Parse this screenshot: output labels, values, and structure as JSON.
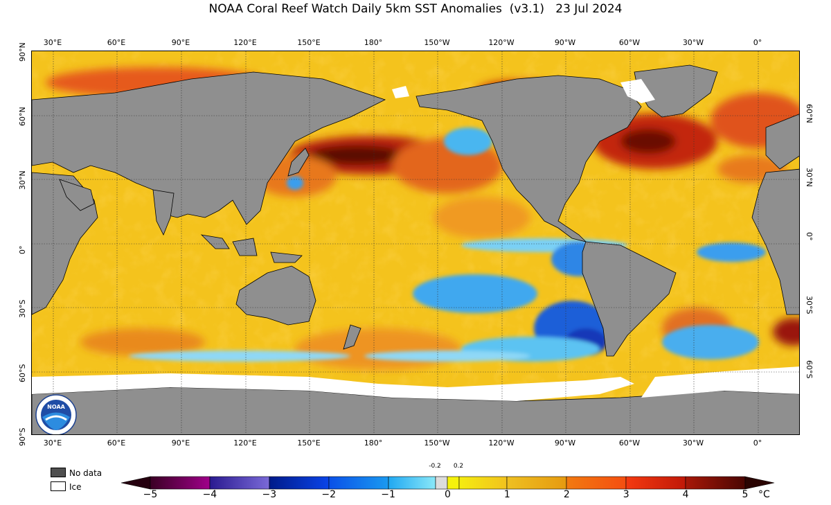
{
  "title": "NOAA Coral Reef Watch Daily 5km SST Anomalies  (v3.1)   23 Jul 2024",
  "map": {
    "lon_labels": [
      "30°E",
      "60°E",
      "90°E",
      "120°E",
      "150°E",
      "180°",
      "150°W",
      "120°W",
      "90°W",
      "60°W",
      "30°W",
      "0°"
    ],
    "lat_labels_left": [
      "90°N",
      "60°N",
      "30°N",
      "0°",
      "30°S",
      "60°S",
      "90°S"
    ],
    "lat_labels_right": [
      "60°N",
      "30°N",
      "0°",
      "30°S",
      "60°S"
    ],
    "colors": {
      "land": "#8f8f8f",
      "ice": "#ffffff",
      "ocean_base": "#f4c01c"
    }
  },
  "logo": {
    "text": "NOAA",
    "name": "noaa-logo"
  },
  "legend": {
    "no_data_label": "No data",
    "ice_label": "Ice",
    "no_data_color": "#4f4f4f",
    "ice_color": "#ffffff"
  },
  "colorbar": {
    "ticks": [
      "−5",
      "−4",
      "−3",
      "−2",
      "−1",
      "0",
      "1",
      "2",
      "3",
      "4",
      "5"
    ],
    "small_ticks": [
      "-0.2",
      "0.2"
    ],
    "unit": "°C",
    "range": [
      -5,
      5
    ]
  }
}
